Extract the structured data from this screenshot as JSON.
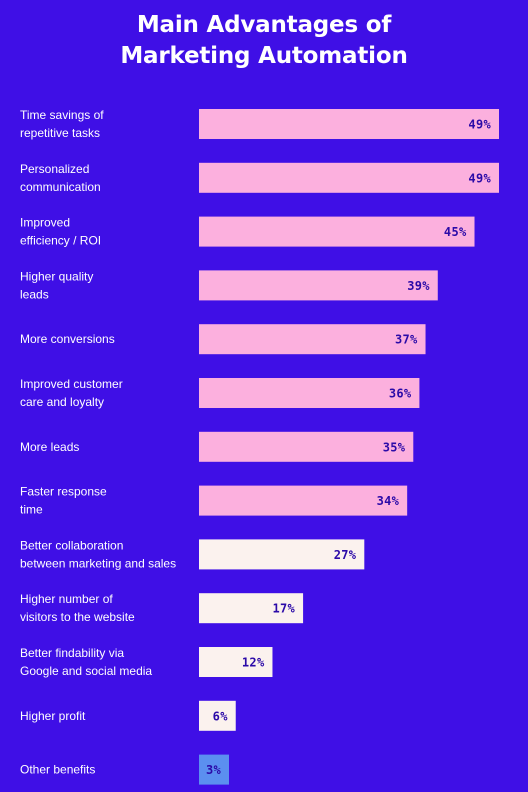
{
  "title": {
    "line1": "Main Advantages of",
    "line2": "Marketing Automation"
  },
  "colors": {
    "background": "#3f0fe6",
    "bar_high": "#fcb0de",
    "bar_mid": "#fbf2ee",
    "bar_low": "#5b8ff0",
    "value_text": "#2b0aa8"
  },
  "chart_data": {
    "type": "bar",
    "orientation": "horizontal",
    "title": "Main Advantages of Marketing Automation",
    "xlabel": "",
    "ylabel": "",
    "value_suffix": "%",
    "xlim": [
      0,
      49
    ],
    "grid": false,
    "categories": [
      [
        "Time savings of",
        "repetitive tasks"
      ],
      [
        "Personalized",
        "communication"
      ],
      [
        "Improved",
        "efficiency / ROI"
      ],
      [
        "Higher quality",
        "leads"
      ],
      [
        "More conversions"
      ],
      [
        "Improved customer",
        "care and loyalty"
      ],
      [
        "More leads"
      ],
      [
        "Faster response",
        "time"
      ],
      [
        "Better collaboration",
        "between marketing and sales"
      ],
      [
        "Higher number of",
        "visitors to the website"
      ],
      [
        "Better findability via",
        "Google and social media"
      ],
      [
        "Higher profit"
      ],
      [
        "Other benefits"
      ]
    ],
    "values": [
      49,
      49,
      45,
      39,
      37,
      36,
      35,
      34,
      27,
      17,
      12,
      6,
      3
    ],
    "labels": [
      "49%",
      "49%",
      "45%",
      "39%",
      "37%",
      "36%",
      "35%",
      "34%",
      "27%",
      "17%",
      "12%",
      "6%",
      "3%"
    ]
  }
}
